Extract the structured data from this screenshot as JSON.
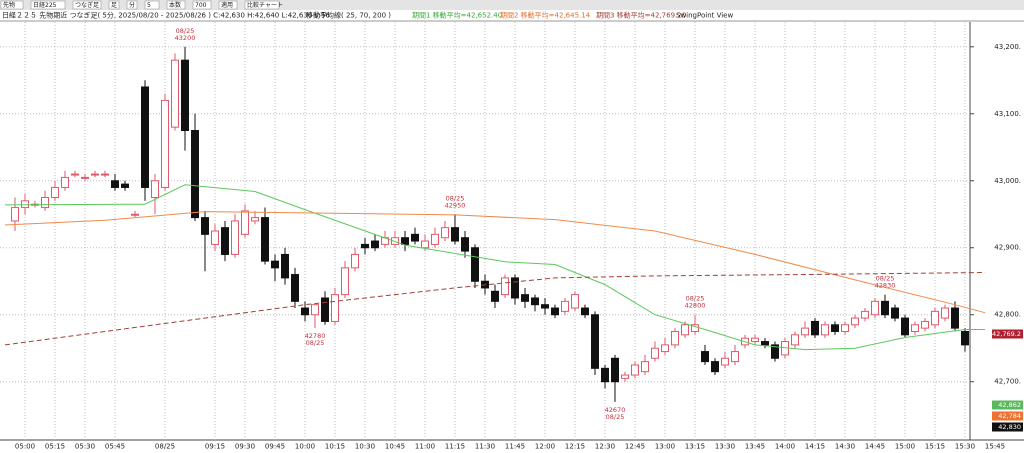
{
  "toolbar": [
    "先物",
    "日経225",
    "つなぎ足",
    "足",
    "分",
    "5",
    "本数",
    "700",
    "適用",
    "比較チャート"
  ],
  "header": {
    "info": "日経２２５ 先物期近 つなぎ足( 5分, 2025/08/20 - 2025/08/26 ) C:42,630 H:42,640 L:42,630 V:56",
    "ma_title": "移動平均線( 25, 70, 200 )",
    "ma1": "期間1 移動平均=42,652.40",
    "ma2": "期間2 移動平均=42,645.14",
    "ma3": "期間3 移動平均=42,769.20",
    "swing": "SwingPoint View"
  },
  "price_boxes": [
    {
      "text": "42,769.2",
      "color": "#b02030"
    },
    {
      "text": "42,862",
      "color": "#5cb85c"
    },
    {
      "text": "42,784",
      "color": "#f07030"
    },
    {
      "text": "42,830",
      "color": "#111111"
    }
  ],
  "chart_data": {
    "type": "candlestick",
    "grid": true,
    "up_color": "#e05a6a",
    "down_color": "#111111",
    "xlim": [
      -1.5,
      95.5
    ],
    "xticks": [
      {
        "value": 1,
        "label": "05:00"
      },
      {
        "value": 4,
        "label": "05:15"
      },
      {
        "value": 7,
        "label": "05:30"
      },
      {
        "value": 10,
        "label": "05:45"
      },
      {
        "value": 15,
        "label": "08/25"
      },
      {
        "value": 20,
        "label": "09:15"
      },
      {
        "value": 23,
        "label": "09:30"
      },
      {
        "value": 26,
        "label": "09:45"
      },
      {
        "value": 29,
        "label": "10:00"
      },
      {
        "value": 32,
        "label": "10:15"
      },
      {
        "value": 35,
        "label": "10:30"
      },
      {
        "value": 38,
        "label": "10:45"
      },
      {
        "value": 41,
        "label": "11:00"
      },
      {
        "value": 44,
        "label": "11:15"
      },
      {
        "value": 47,
        "label": "11:30"
      },
      {
        "value": 50,
        "label": "11:45"
      },
      {
        "value": 53,
        "label": "12:00"
      },
      {
        "value": 56,
        "label": "12:15"
      },
      {
        "value": 59,
        "label": "12:30"
      },
      {
        "value": 62,
        "label": "12:45"
      },
      {
        "value": 65,
        "label": "13:00"
      },
      {
        "value": 68,
        "label": "13:15"
      },
      {
        "value": 71,
        "label": "13:30"
      },
      {
        "value": 74,
        "label": "13:45"
      },
      {
        "value": 77,
        "label": "14:00"
      },
      {
        "value": 80,
        "label": "14:15"
      },
      {
        "value": 83,
        "label": "14:30"
      },
      {
        "value": 86,
        "label": "14:45"
      },
      {
        "value": 89,
        "label": "15:00"
      },
      {
        "value": 92,
        "label": "15:15"
      },
      {
        "value": 95,
        "label": "15:30"
      },
      {
        "value": 98,
        "label": "15:45"
      }
    ],
    "ylim": [
      42613,
      43237
    ],
    "yticks": [
      {
        "value": 42700,
        "label": "42,700."
      },
      {
        "value": 42800,
        "label": "42,800."
      },
      {
        "value": 42900,
        "label": "42,900."
      },
      {
        "value": 43000,
        "label": "43,000."
      },
      {
        "value": 43100,
        "label": "43,100."
      },
      {
        "value": 43200,
        "label": "43,200."
      }
    ],
    "open": [
      42940,
      42960,
      42965,
      42960,
      42975,
      42990,
      43010,
      43005,
      43010,
      43010,
      43000,
      42995,
      42950,
      43140,
      42975,
      42990,
      43080,
      43180,
      43075,
      42945,
      42905,
      42930,
      42890,
      42920,
      42940,
      42945,
      42880,
      42890,
      42860,
      42810,
      42800,
      42825,
      42790,
      42830,
      42870,
      42905,
      42910,
      42905,
      42905,
      42915,
      42920,
      42900,
      42905,
      42915,
      42930,
      42915,
      42900,
      42850,
      42835,
      42830,
      42855,
      42830,
      42825,
      42815,
      42810,
      42805,
      42810,
      42810,
      42800,
      42720,
      42735,
      42705,
      42710,
      42715,
      42735,
      42745,
      42755,
      42770,
      42775,
      42745,
      42730,
      42725,
      42730,
      42755,
      42760,
      42760,
      42755,
      42740,
      42755,
      42770,
      42790,
      42770,
      42785,
      42775,
      42785,
      42795,
      42800,
      42820,
      42810,
      42795,
      42775,
      42780,
      42785,
      42795,
      42810,
      42775
    ],
    "high": [
      42975,
      42980,
      42970,
      42985,
      43000,
      43015,
      43015,
      43010,
      43015,
      43015,
      43010,
      43000,
      42955,
      43150,
      43010,
      43130,
      43190,
      43200,
      43100,
      42955,
      42935,
      42940,
      42950,
      42965,
      42955,
      42960,
      42890,
      42900,
      42870,
      42820,
      42815,
      42835,
      42840,
      42880,
      42900,
      42915,
      42920,
      42925,
      42925,
      42925,
      42930,
      42920,
      42930,
      42940,
      42950,
      42925,
      42905,
      42860,
      42845,
      42860,
      42860,
      42840,
      42830,
      42825,
      42815,
      42825,
      42835,
      42815,
      42805,
      42725,
      42740,
      42715,
      42730,
      42740,
      42760,
      42765,
      42780,
      42790,
      42800,
      42755,
      42735,
      42745,
      42755,
      42770,
      42770,
      42765,
      42760,
      42765,
      42775,
      42790,
      42795,
      42790,
      42790,
      42790,
      42800,
      42810,
      42825,
      42830,
      42815,
      42800,
      42790,
      42795,
      42810,
      42815,
      42820,
      42780
    ],
    "low": [
      42925,
      42950,
      42960,
      42955,
      42970,
      42985,
      43005,
      43000,
      43005,
      43005,
      42985,
      42985,
      42945,
      42970,
      42950,
      42985,
      43075,
      43045,
      42940,
      42865,
      42895,
      42880,
      42885,
      42915,
      42935,
      42875,
      42850,
      42845,
      42810,
      42790,
      42780,
      42785,
      42785,
      42825,
      42865,
      42890,
      42895,
      42900,
      42900,
      42895,
      42905,
      42895,
      42900,
      42910,
      42905,
      42885,
      42840,
      42830,
      42810,
      42825,
      42815,
      42810,
      42805,
      42800,
      42795,
      42800,
      42805,
      42795,
      42710,
      42690,
      42670,
      42700,
      42705,
      42710,
      42730,
      42740,
      42750,
      42765,
      42770,
      42725,
      42710,
      42720,
      42725,
      42750,
      42755,
      42750,
      42730,
      42735,
      42750,
      42765,
      42765,
      42765,
      42770,
      42770,
      42780,
      42790,
      42795,
      42795,
      42790,
      42765,
      42770,
      42775,
      42780,
      42790,
      42775,
      42745
    ],
    "close": [
      42960,
      42970,
      42965,
      42975,
      42990,
      43005,
      43010,
      43005,
      43010,
      43010,
      42990,
      42990,
      42950,
      42990,
      43000,
      43120,
      43180,
      43075,
      42945,
      42920,
      42925,
      42890,
      42940,
      42955,
      42945,
      42880,
      42870,
      42855,
      42820,
      42800,
      42815,
      42790,
      42830,
      42870,
      42890,
      42900,
      42900,
      42915,
      42915,
      42905,
      42910,
      42910,
      42920,
      42930,
      42910,
      42895,
      42850,
      42840,
      42820,
      42855,
      42825,
      42820,
      42815,
      42810,
      42800,
      42820,
      42830,
      42800,
      42720,
      42700,
      42700,
      42710,
      42725,
      42730,
      42750,
      42755,
      42775,
      42785,
      42785,
      42730,
      42715,
      42735,
      42745,
      42765,
      42765,
      42755,
      42735,
      42760,
      42770,
      42780,
      42770,
      42785,
      42775,
      42785,
      42795,
      42805,
      42820,
      42800,
      42795,
      42770,
      42785,
      42790,
      42805,
      42810,
      42780,
      42755
    ],
    "ma": [
      {
        "color": "#5cc85c",
        "dash": false,
        "x": [
          -1,
          13,
          17,
          24,
          29,
          39,
          49,
          54,
          59,
          64,
          69,
          74,
          79,
          84,
          89,
          95,
          97
        ],
        "values": [
          42964,
          42965,
          42994,
          42984,
          42957,
          42904,
          42879,
          42875,
          42845,
          42800,
          42778,
          42755,
          42748,
          42750,
          42766,
          42778,
          42778
        ]
      },
      {
        "color": "#f08a4b",
        "dash": false,
        "x": [
          -1,
          9,
          19,
          29,
          44,
          54,
          64,
          74,
          84,
          94,
          97
        ],
        "values": [
          42934,
          42941,
          42954,
          42952,
          42949,
          42942,
          42925,
          42890,
          42852,
          42815,
          42803
        ]
      },
      {
        "color": "#a0403a",
        "dash": true,
        "x": [
          -1,
          14,
          29,
          44,
          54,
          64,
          79,
          97
        ],
        "values": [
          42755,
          42785,
          42815,
          42840,
          42855,
          42858,
          42860,
          42863
        ]
      }
    ],
    "annotations": [
      {
        "lines": [
          "08/25",
          "43200"
        ]
      },
      {
        "lines": [
          "42780",
          "08/25"
        ]
      },
      {
        "lines": [
          "08/25",
          "42950"
        ]
      },
      {
        "lines": [
          "42670",
          "08/25"
        ]
      },
      {
        "lines": [
          "08/25",
          "42800"
        ]
      },
      {
        "lines": [
          "08/25",
          "42830"
        ]
      }
    ]
  }
}
